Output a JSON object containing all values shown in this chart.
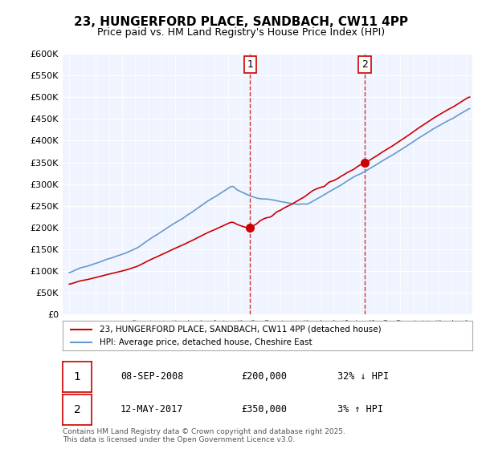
{
  "title": "23, HUNGERFORD PLACE, SANDBACH, CW11 4PP",
  "subtitle": "Price paid vs. HM Land Registry's House Price Index (HPI)",
  "ylabel_ticks": [
    "£0",
    "£50K",
    "£100K",
    "£150K",
    "£200K",
    "£250K",
    "£300K",
    "£350K",
    "£400K",
    "£450K",
    "£500K",
    "£550K",
    "£600K"
  ],
  "ytick_values": [
    0,
    50000,
    100000,
    150000,
    200000,
    250000,
    300000,
    350000,
    400000,
    450000,
    500000,
    550000,
    600000
  ],
  "xlim_start": 1994.5,
  "xlim_end": 2025.5,
  "ylim_min": 0,
  "ylim_max": 600000,
  "sale1_date": 2008.69,
  "sale1_price": 200000,
  "sale2_date": 2017.36,
  "sale2_price": 350000,
  "legend_house_label": "23, HUNGERFORD PLACE, SANDBACH, CW11 4PP (detached house)",
  "legend_hpi_label": "HPI: Average price, detached house, Cheshire East",
  "house_color": "#cc0000",
  "hpi_color": "#6699cc",
  "annotation_color": "#cc0000",
  "vline_color": "#cc0000",
  "table_row1": [
    "1",
    "08-SEP-2008",
    "£200,000",
    "32% ↓ HPI"
  ],
  "table_row2": [
    "2",
    "12-MAY-2017",
    "£350,000",
    "3% ↑ HPI"
  ],
  "footer": "Contains HM Land Registry data © Crown copyright and database right 2025.\nThis data is licensed under the Open Government Licence v3.0.",
  "bg_color": "#ffffff",
  "plot_bg_color": "#f0f4ff",
  "grid_color": "#ffffff"
}
